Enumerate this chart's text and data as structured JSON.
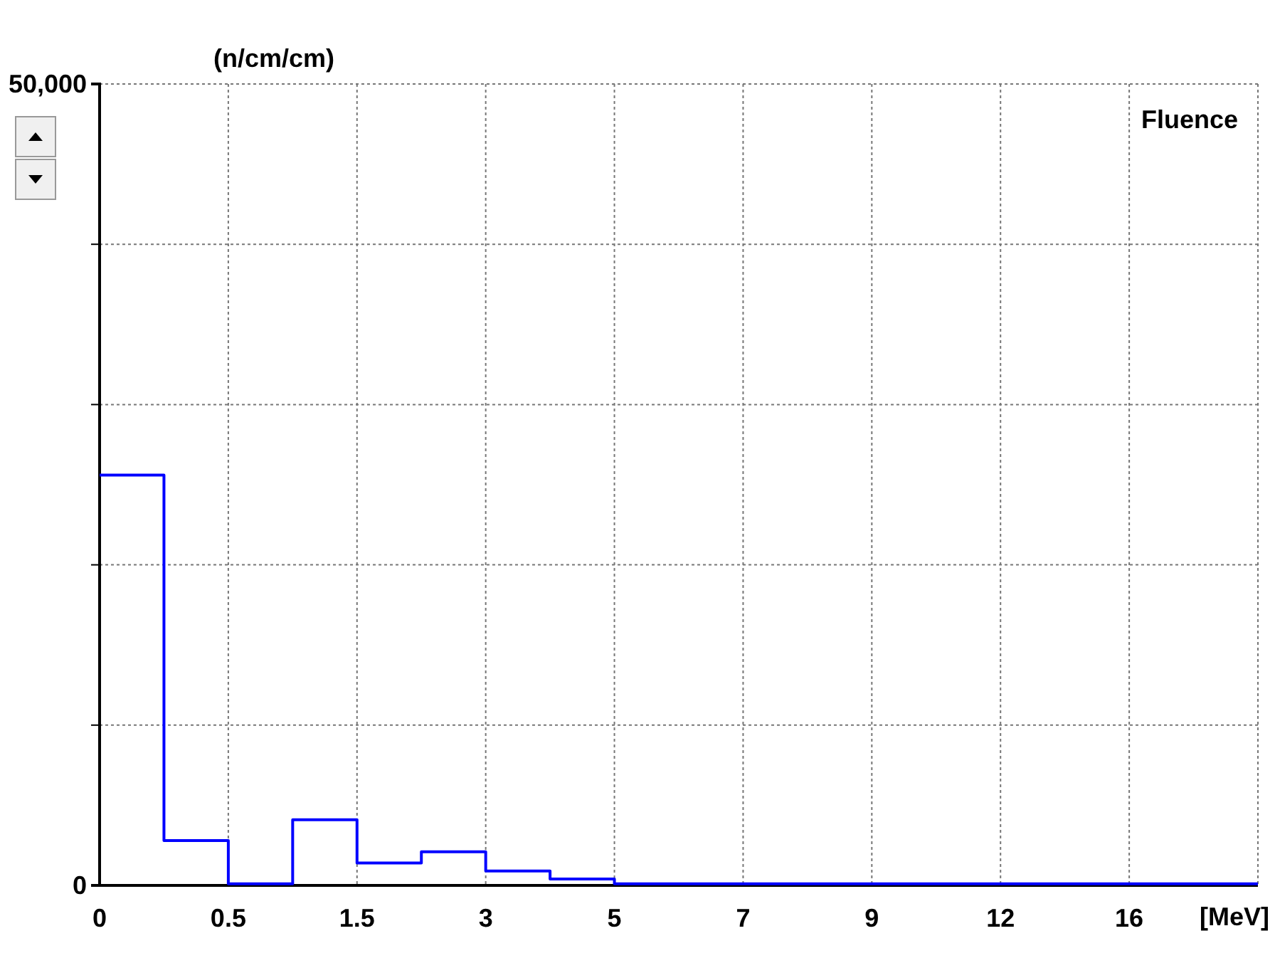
{
  "chart_data": {
    "type": "step",
    "title": "Fluence",
    "ylabel": "(n/cm/cm)",
    "xlabel": "[MeV]",
    "categories": [
      "0",
      null,
      "0.5",
      null,
      "1.5",
      null,
      "3",
      null,
      "5",
      null,
      "7",
      null,
      "9",
      null,
      "12",
      null,
      "16",
      null,
      null
    ],
    "values": [
      25600,
      2800,
      100,
      4100,
      1400,
      2100,
      900,
      400,
      100,
      100,
      100,
      100,
      100,
      100,
      100,
      100,
      100,
      100,
      100
    ],
    "color": "#0000ff",
    "ylim": [
      0,
      50000
    ],
    "yticks": [
      0,
      {
        "value": 10000,
        "label": null
      },
      {
        "value": 20000,
        "label": null
      },
      {
        "value": 30000,
        "label": null
      },
      {
        "value": 40000,
        "label": null
      },
      {
        "value": 50000,
        "label": "50,000"
      }
    ],
    "grid": true
  }
}
